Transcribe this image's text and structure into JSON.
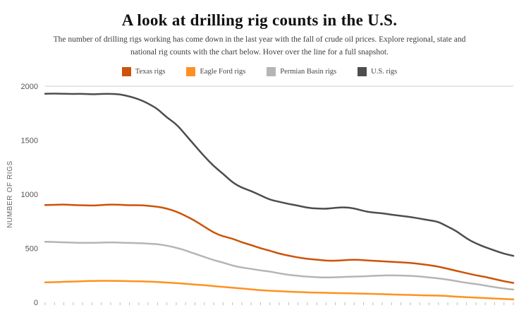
{
  "title": "A look at drilling rig counts in the U.S.",
  "subtitle": "The number of drilling rigs working has come down in the last year with the fall of crude oil prices. Explore regional, state and national rig counts with the chart below. Hover over the line for a full snapshot.",
  "chart_data": {
    "type": "line",
    "title": "A look at drilling rig counts in the U.S.",
    "xlabel": "",
    "ylabel": "NUMBER OF RIGS",
    "ylim": [
      0,
      2000
    ],
    "yticks": [
      0,
      500,
      1000,
      1500,
      2000
    ],
    "grid": "top-border-only",
    "legend_position": "top",
    "x_axis": {
      "tick_marks": true,
      "tick_labels_visible": false
    },
    "series": [
      {
        "name": "Texas rigs",
        "color": "#cc5308",
        "values": [
          900,
          903,
          905,
          900,
          898,
          895,
          900,
          905,
          903,
          898,
          900,
          893,
          885,
          868,
          840,
          800,
          755,
          700,
          645,
          610,
          590,
          555,
          530,
          500,
          478,
          450,
          432,
          415,
          402,
          395,
          385,
          385,
          390,
          395,
          390,
          385,
          380,
          375,
          370,
          365,
          355,
          345,
          330,
          310,
          290,
          270,
          250,
          235,
          215,
          195,
          180
        ]
      },
      {
        "name": "Eagle Ford rigs",
        "color": "#ff9122",
        "values": [
          185,
          187,
          190,
          192,
          195,
          198,
          200,
          199,
          198,
          196,
          195,
          192,
          188,
          183,
          178,
          172,
          165,
          158,
          150,
          143,
          135,
          128,
          120,
          113,
          107,
          103,
          99,
          96,
          92,
          90,
          88,
          86,
          84,
          82,
          80,
          78,
          76,
          73,
          70,
          68,
          66,
          64,
          62,
          58,
          52,
          48,
          44,
          40,
          36,
          31,
          28
        ]
      },
      {
        "name": "Permian Basin rigs",
        "color": "#b5b5b5",
        "values": [
          560,
          558,
          555,
          552,
          550,
          550,
          553,
          555,
          552,
          550,
          548,
          543,
          538,
          525,
          505,
          480,
          450,
          420,
          390,
          368,
          340,
          322,
          310,
          295,
          285,
          268,
          255,
          245,
          238,
          232,
          230,
          232,
          235,
          238,
          240,
          245,
          248,
          250,
          248,
          245,
          240,
          230,
          222,
          210,
          195,
          180,
          170,
          155,
          140,
          128,
          118
        ]
      },
      {
        "name": "U.S. rigs",
        "color": "#4d4d4d",
        "values": [
          1930,
          1932,
          1930,
          1928,
          1930,
          1925,
          1928,
          1930,
          1925,
          1905,
          1880,
          1840,
          1790,
          1710,
          1650,
          1550,
          1450,
          1350,
          1260,
          1190,
          1110,
          1060,
          1030,
          990,
          950,
          930,
          910,
          895,
          875,
          868,
          865,
          875,
          880,
          870,
          845,
          830,
          825,
          810,
          800,
          790,
          775,
          760,
          745,
          700,
          655,
          590,
          545,
          510,
          480,
          450,
          430
        ]
      }
    ]
  }
}
